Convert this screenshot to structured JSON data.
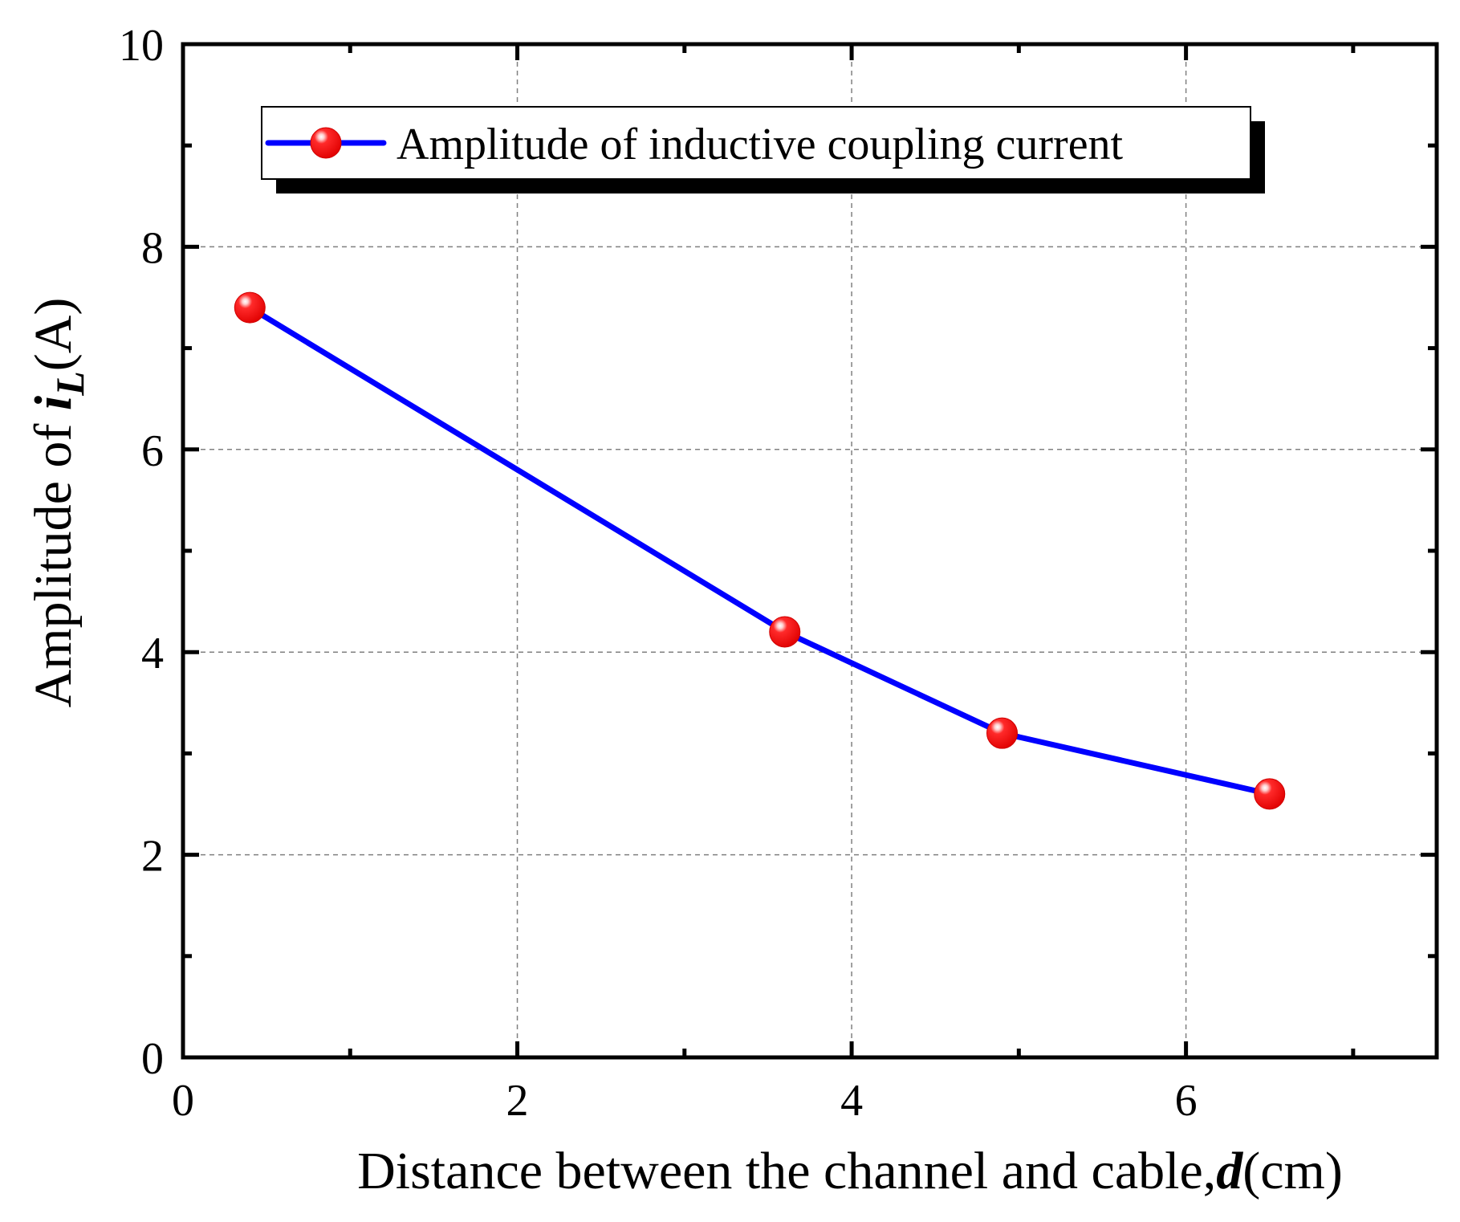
{
  "chart_data": {
    "type": "line",
    "xlabel": {
      "prefix": "Distance between the channel and cable,",
      "var": "d",
      "suffix": "(cm)"
    },
    "ylabel": {
      "prefix": "Amplitude of ",
      "var": "i",
      "sub": "L",
      "suffix": "(A)"
    },
    "xlim": [
      0,
      7.5
    ],
    "ylim": [
      0,
      10
    ],
    "xticks": [
      0,
      2,
      4,
      6
    ],
    "yticks": [
      0,
      2,
      4,
      6,
      8,
      10
    ],
    "grid": true,
    "legend_position": "top-left",
    "series": [
      {
        "name": "Amplitude of inductive coupling current",
        "line_color": "#0000ff",
        "marker_color": "#ff0000",
        "x": [
          0.4,
          3.6,
          4.9,
          6.5
        ],
        "y": [
          7.4,
          4.2,
          3.2,
          2.6
        ]
      }
    ]
  }
}
